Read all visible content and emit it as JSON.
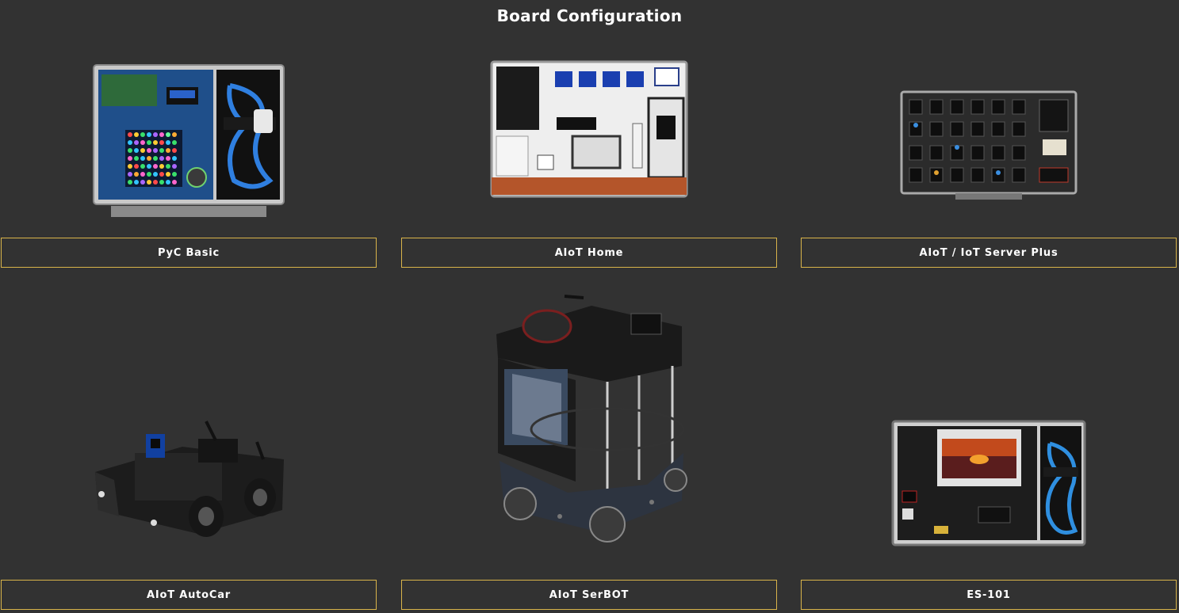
{
  "page": {
    "title": "Board Configuration"
  },
  "products": [
    {
      "name": "PyC Basic",
      "image": "pyc-basic-kit-image"
    },
    {
      "name": "AIoT Home",
      "image": "aiot-home-kit-image"
    },
    {
      "name": "AIoT / IoT Server Plus",
      "image": "iot-server-plus-kit-image"
    },
    {
      "name": "AIoT AutoCar",
      "image": "aiot-autocar-robot-image"
    },
    {
      "name": "AIoT SerBOT",
      "image": "aiot-serbot-robot-image"
    },
    {
      "name": "ES-101",
      "image": "es-101-kit-image"
    }
  ],
  "colors": {
    "background": "#323232",
    "border_accent": "#d9b44a",
    "text": "#ffffff"
  }
}
